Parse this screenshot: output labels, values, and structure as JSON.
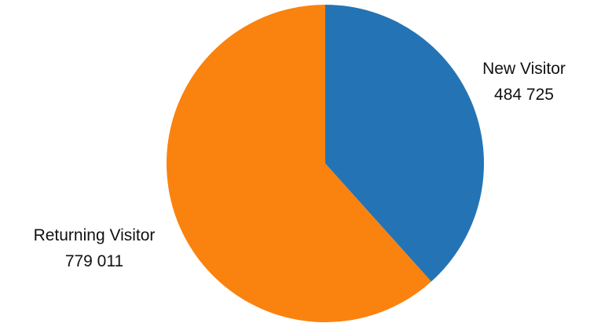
{
  "chart_data": {
    "type": "pie",
    "title": "",
    "start_angle_deg": 0,
    "direction": "clockwise",
    "slices": [
      {
        "label": "New Visitor",
        "value": 484725,
        "value_text": "484 725",
        "color": "#2474b5"
      },
      {
        "label": "Returning Visitor",
        "value": 779011,
        "value_text": "779 011",
        "color": "#fa820e"
      }
    ],
    "legend": "none"
  }
}
